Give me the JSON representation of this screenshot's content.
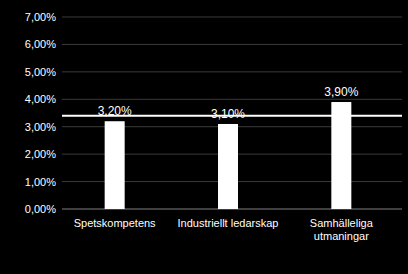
{
  "chart_data": {
    "type": "bar",
    "categories": [
      "Spetskompetens",
      "Industriellt ledarskap",
      "Samhälleliga utmaningar"
    ],
    "values": [
      3.2,
      3.1,
      3.9
    ],
    "value_labels": [
      "3,20%",
      "3,10%",
      "3,90%"
    ],
    "data_labels": true,
    "color": "#ffffff",
    "reference_line": 3.4,
    "ylim": [
      0,
      7
    ],
    "yticks": [
      {
        "value": 0,
        "label": "0,00%"
      },
      {
        "value": 1,
        "label": "1,00%"
      },
      {
        "value": 2,
        "label": "2,00%"
      },
      {
        "value": 3,
        "label": "3,00%"
      },
      {
        "value": 4,
        "label": "4,00%"
      },
      {
        "value": 5,
        "label": "5,00%"
      },
      {
        "value": 6,
        "label": "6,00%"
      },
      {
        "value": 7,
        "label": "7,00%"
      }
    ],
    "grid": true
  }
}
